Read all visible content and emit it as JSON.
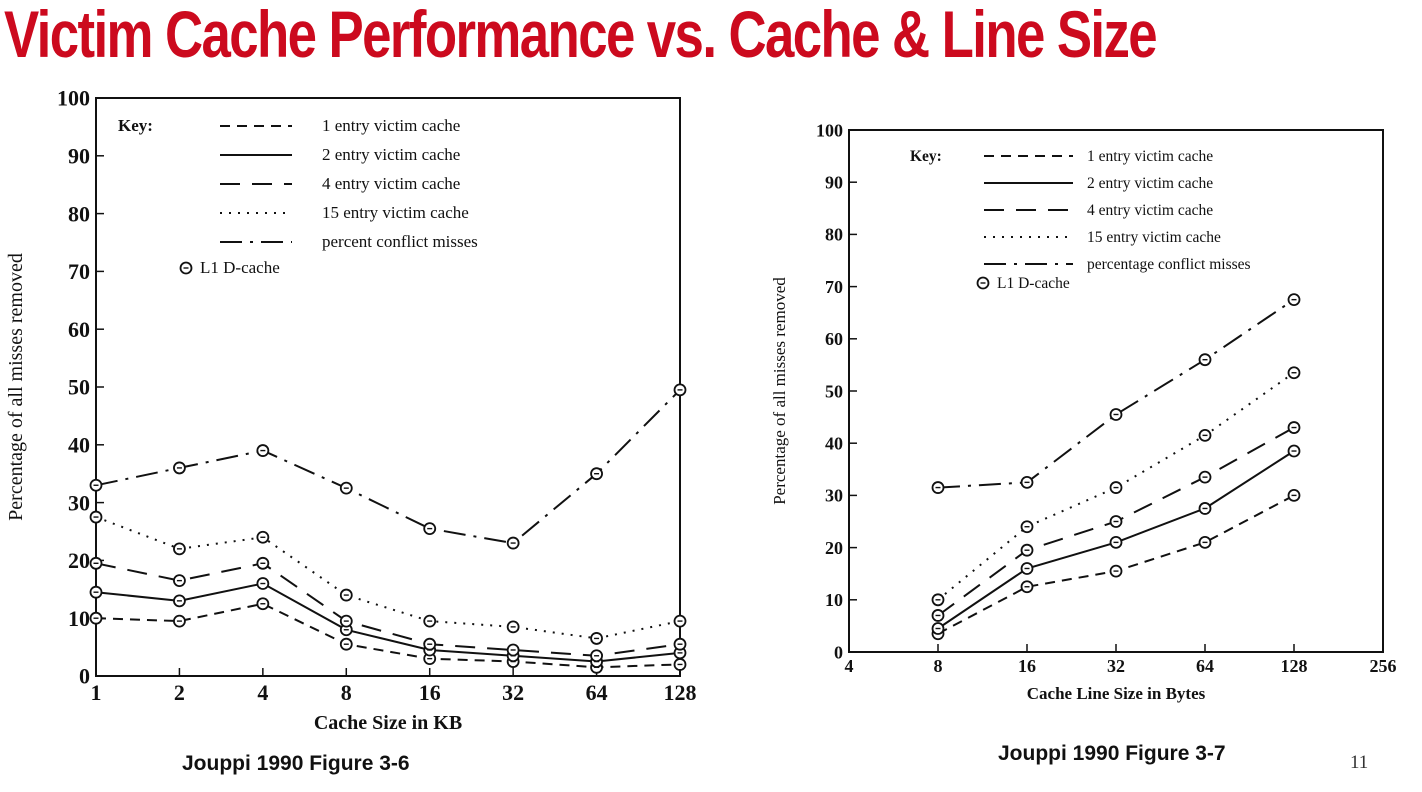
{
  "slide": {
    "title": "Victim Cache Performance vs. Cache & Line Size",
    "page_number": "11"
  },
  "chart_data": [
    {
      "type": "line",
      "caption": "Jouppi 1990 Figure 3-6",
      "xlabel": "Cache Size in KB",
      "ylabel": "Percentage of all misses removed",
      "x_scale": "log2",
      "x": [
        1,
        2,
        4,
        8,
        16,
        32,
        64,
        128
      ],
      "x_ticks": [
        "1",
        "2",
        "4",
        "8",
        "16",
        "32",
        "64",
        "128"
      ],
      "ylim": [
        0,
        100
      ],
      "y_ticks": [
        "0",
        "10",
        "20",
        "30",
        "40",
        "50",
        "60",
        "70",
        "80",
        "90",
        "100"
      ],
      "legend_title": "Key:",
      "legend_placement": "top-left",
      "marker_note": "L1 D-cache",
      "grid": false,
      "series": [
        {
          "name": "1 entry victim cache",
          "dash": "short-dash",
          "values": [
            10,
            9.5,
            12.5,
            5.5,
            3,
            2.5,
            1.5,
            2
          ]
        },
        {
          "name": "2 entry victim cache",
          "dash": "solid",
          "values": [
            14.5,
            13,
            16,
            8,
            4.5,
            3.5,
            2.5,
            4
          ]
        },
        {
          "name": "4 entry victim cache",
          "dash": "long-dash",
          "values": [
            19.5,
            16.5,
            19.5,
            9.5,
            5.5,
            4.5,
            3.5,
            5.5
          ]
        },
        {
          "name": "15 entry victim cache",
          "dash": "dotted",
          "values": [
            27.5,
            22,
            24,
            14,
            9.5,
            8.5,
            6.5,
            9.5
          ]
        },
        {
          "name": "percent conflict misses",
          "dash": "dash-dot",
          "values": [
            33,
            36,
            39,
            32.5,
            25.5,
            23,
            35,
            49.5
          ]
        }
      ]
    },
    {
      "type": "line",
      "caption": "Jouppi 1990 Figure 3-7",
      "xlabel": "Cache Line Size in Bytes",
      "ylabel": "Percentage of all misses removed",
      "x_scale": "log2",
      "x": [
        8,
        16,
        32,
        64,
        128
      ],
      "x_ticks": [
        "4",
        "8",
        "16",
        "32",
        "64",
        "128",
        "256"
      ],
      "xlim": [
        4,
        256
      ],
      "ylim": [
        0,
        100
      ],
      "y_ticks": [
        "0",
        "10",
        "20",
        "30",
        "40",
        "50",
        "60",
        "70",
        "80",
        "90",
        "100"
      ],
      "legend_title": "Key:",
      "legend_placement": "top-right",
      "marker_note": "L1 D-cache",
      "grid": false,
      "series": [
        {
          "name": "1 entry victim cache",
          "dash": "short-dash",
          "values": [
            3.5,
            12.5,
            15.5,
            21,
            30
          ]
        },
        {
          "name": "2 entry victim cache",
          "dash": "solid",
          "values": [
            4.5,
            16,
            21,
            27.5,
            38.5
          ]
        },
        {
          "name": "4 entry victim cache",
          "dash": "long-dash",
          "values": [
            7,
            19.5,
            25,
            33.5,
            43
          ]
        },
        {
          "name": "15 entry victim cache",
          "dash": "dotted",
          "values": [
            10,
            24,
            31.5,
            41.5,
            53.5
          ]
        },
        {
          "name": "percentage conflict misses",
          "dash": "dash-dot",
          "values": [
            31.5,
            32.5,
            45.5,
            56,
            67.5
          ]
        }
      ]
    }
  ]
}
